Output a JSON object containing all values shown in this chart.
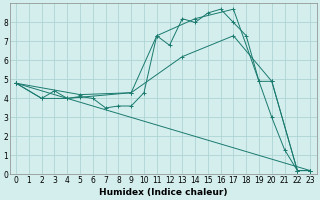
{
  "xlabel": "Humidex (Indice chaleur)",
  "bg_color": "#d4eeee",
  "line_color": "#1a7a6e",
  "grid_color": "#aed4d4",
  "xlim": [
    -0.5,
    23.5
  ],
  "ylim": [
    0,
    9
  ],
  "xticks": [
    0,
    1,
    2,
    3,
    4,
    5,
    6,
    7,
    8,
    9,
    10,
    11,
    12,
    13,
    14,
    15,
    16,
    17,
    18,
    19,
    20,
    21,
    22,
    23
  ],
  "yticks": [
    0,
    1,
    2,
    3,
    4,
    5,
    6,
    7,
    8
  ],
  "lines": [
    {
      "x": [
        0,
        2,
        3,
        4,
        5,
        6,
        7,
        8,
        9,
        10,
        11,
        12,
        13,
        14,
        15,
        16,
        17,
        18,
        19,
        20,
        21,
        22,
        23
      ],
      "y": [
        4.8,
        4.0,
        4.4,
        4.0,
        4.1,
        4.0,
        3.5,
        3.6,
        3.6,
        4.3,
        7.3,
        6.8,
        8.2,
        8.0,
        8.5,
        8.7,
        8.0,
        7.3,
        4.9,
        3.0,
        1.3,
        0.2,
        0.2
      ]
    },
    {
      "x": [
        0,
        2,
        4,
        9,
        13,
        17,
        20,
        22,
        23
      ],
      "y": [
        4.8,
        4.0,
        4.0,
        4.3,
        6.2,
        7.3,
        4.9,
        0.2,
        0.2
      ]
    },
    {
      "x": [
        0,
        5,
        9,
        11,
        14,
        17,
        19,
        20,
        22,
        23
      ],
      "y": [
        4.8,
        4.2,
        4.3,
        7.3,
        8.2,
        8.7,
        4.9,
        4.9,
        0.2,
        0.2
      ]
    },
    {
      "x": [
        0,
        23
      ],
      "y": [
        4.8,
        0.2
      ]
    }
  ],
  "tick_fontsize": 5.5,
  "xlabel_fontsize": 6.5,
  "xlabel_fontweight": "bold"
}
